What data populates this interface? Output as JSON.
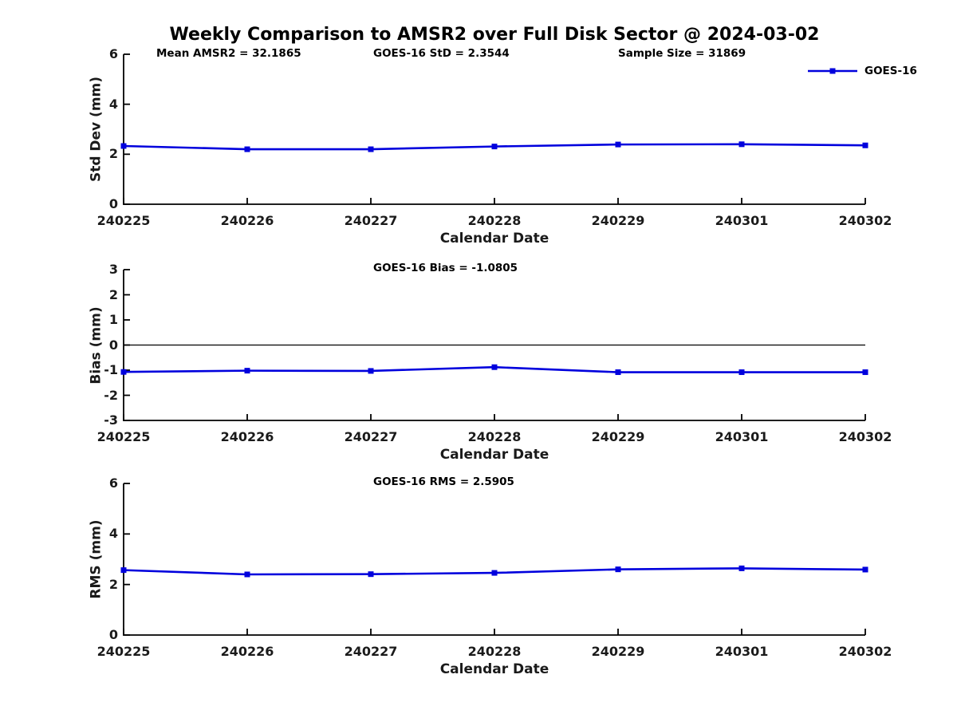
{
  "figure": {
    "title": "Weekly Comparison to AMSR2 over Full Disk Sector @ 2024-03-02",
    "legend": {
      "label": "GOES-16",
      "color": "#0000dd"
    }
  },
  "chart_data": [
    {
      "type": "line",
      "panel": "std-dev",
      "annotations": [
        "Mean AMSR2 = 32.1865",
        "GOES-16 StD = 2.3544",
        "Sample Size = 31869"
      ],
      "xlabel": "Calendar Date",
      "ylabel": "Std Dev (mm)",
      "categories": [
        "240225",
        "240226",
        "240227",
        "240228",
        "240229",
        "240301",
        "240302"
      ],
      "series": [
        {
          "name": "GOES-16",
          "color": "#0000dd",
          "marker": "square",
          "values": [
            2.33,
            2.2,
            2.2,
            2.31,
            2.39,
            2.4,
            2.3544
          ]
        }
      ],
      "ylim": [
        0,
        6
      ],
      "yticks": [
        0,
        2,
        4,
        6
      ],
      "zero_line": false,
      "grid": false,
      "legend_position": "top-right"
    },
    {
      "type": "line",
      "panel": "bias",
      "annotations": [
        "GOES-16 Bias  = -1.0805"
      ],
      "xlabel": "Calendar Date",
      "ylabel": "Bias (mm)",
      "categories": [
        "240225",
        "240226",
        "240227",
        "240228",
        "240229",
        "240301",
        "240302"
      ],
      "series": [
        {
          "name": "GOES-16",
          "color": "#0000dd",
          "marker": "square",
          "values": [
            -1.07,
            -1.02,
            -1.03,
            -0.88,
            -1.08,
            -1.08,
            -1.0805
          ]
        }
      ],
      "ylim": [
        -3,
        3
      ],
      "yticks": [
        3,
        2,
        1,
        0,
        -1,
        -2,
        -3
      ],
      "zero_line": true,
      "grid": false,
      "legend_position": "none"
    },
    {
      "type": "line",
      "panel": "rms",
      "annotations": [
        "GOES-16 RMS = 2.5905"
      ],
      "xlabel": "Calendar Date",
      "ylabel": "RMS (mm)",
      "categories": [
        "240225",
        "240226",
        "240227",
        "240228",
        "240229",
        "240301",
        "240302"
      ],
      "series": [
        {
          "name": "GOES-16",
          "color": "#0000dd",
          "marker": "square",
          "values": [
            2.57,
            2.4,
            2.41,
            2.46,
            2.6,
            2.64,
            2.5905
          ]
        }
      ],
      "ylim": [
        0,
        6
      ],
      "yticks": [
        0,
        2,
        4,
        6
      ],
      "zero_line": false,
      "grid": false,
      "legend_position": "none"
    }
  ]
}
